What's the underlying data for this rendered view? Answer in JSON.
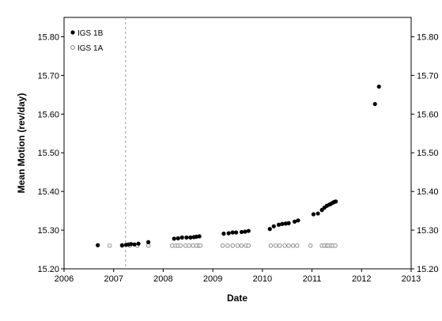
{
  "chart_data": {
    "type": "scatter",
    "xlabel": "Date",
    "ylabel": "Mean Motion  (rev/day)",
    "xlim": [
      2006,
      2013
    ],
    "ylim": [
      15.2,
      15.85
    ],
    "x_ticks": [
      "2006",
      "2007",
      "2008",
      "2009",
      "2010",
      "2011",
      "2012",
      "2013"
    ],
    "y_ticks": [
      "15.20",
      "15.30",
      "15.40",
      "15.50",
      "15.60",
      "15.70",
      "15.80"
    ],
    "y_tick_values": [
      15.2,
      15.3,
      15.4,
      15.5,
      15.6,
      15.7,
      15.8
    ],
    "x_tick_values": [
      2006,
      2007,
      2008,
      2009,
      2010,
      2011,
      2012,
      2013
    ],
    "grid": false,
    "legend_position": "top-left",
    "reference_line": {
      "x": 2007.24,
      "style": "dashed"
    },
    "series": [
      {
        "name": "IGS 1B",
        "marker": "filled-circle",
        "color": "#000000",
        "x": [
          2006.68,
          2007.17,
          2007.25,
          2007.3,
          2007.35,
          2007.42,
          2007.5,
          2007.7,
          2008.22,
          2008.3,
          2008.38,
          2008.47,
          2008.55,
          2008.62,
          2008.67,
          2008.73,
          2009.22,
          2009.32,
          2009.4,
          2009.47,
          2009.58,
          2009.65,
          2009.72,
          2010.15,
          2010.23,
          2010.33,
          2010.4,
          2010.47,
          2010.53,
          2010.65,
          2010.72,
          2011.03,
          2011.12,
          2011.2,
          2011.25,
          2011.3,
          2011.35,
          2011.38,
          2011.42,
          2011.45,
          2011.48,
          2012.27,
          2012.35
        ],
        "values": [
          15.261,
          15.261,
          15.262,
          15.263,
          15.264,
          15.263,
          15.265,
          15.269,
          15.278,
          15.279,
          15.281,
          15.281,
          15.281,
          15.282,
          15.283,
          15.284,
          15.291,
          15.292,
          15.294,
          15.294,
          15.295,
          15.296,
          15.298,
          15.303,
          15.31,
          15.314,
          15.316,
          15.317,
          15.318,
          15.322,
          15.325,
          15.341,
          15.343,
          15.352,
          15.358,
          15.363,
          15.366,
          15.368,
          15.371,
          15.373,
          15.374,
          15.626,
          15.671
        ]
      },
      {
        "name": "IGS 1A",
        "marker": "open-circle",
        "color": "#808080",
        "x": [
          2006.92,
          2007.17,
          2007.33,
          2007.48,
          2007.7,
          2008.18,
          2008.25,
          2008.3,
          2008.35,
          2008.45,
          2008.52,
          2008.6,
          2008.67,
          2008.72,
          2008.75,
          2009.2,
          2009.3,
          2009.4,
          2009.5,
          2009.58,
          2009.67,
          2009.72,
          2010.17,
          2010.27,
          2010.35,
          2010.45,
          2010.53,
          2010.62,
          2010.7,
          2010.97,
          2011.2,
          2011.25,
          2011.3,
          2011.33,
          2011.38,
          2011.42,
          2011.47
        ],
        "values": [
          15.26,
          15.26,
          15.26,
          15.26,
          15.26,
          15.26,
          15.26,
          15.26,
          15.26,
          15.26,
          15.26,
          15.26,
          15.26,
          15.26,
          15.26,
          15.26,
          15.26,
          15.26,
          15.26,
          15.26,
          15.26,
          15.26,
          15.26,
          15.26,
          15.26,
          15.26,
          15.26,
          15.26,
          15.26,
          15.26,
          15.26,
          15.26,
          15.26,
          15.26,
          15.26,
          15.26,
          15.26
        ]
      }
    ]
  }
}
